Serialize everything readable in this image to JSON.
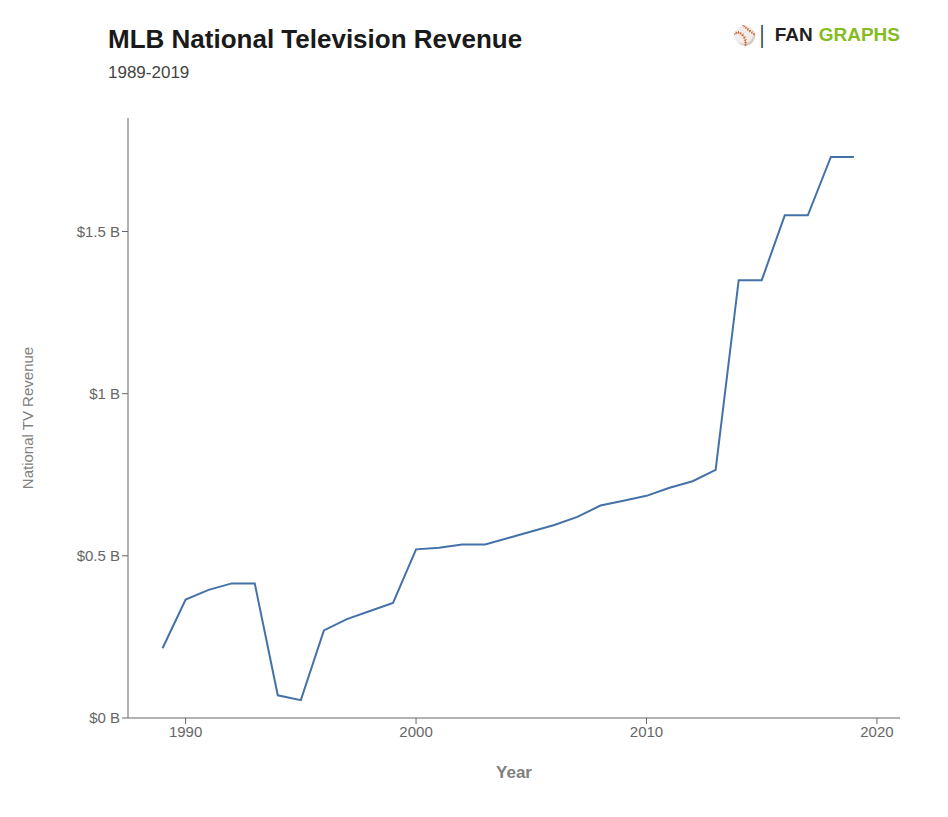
{
  "chart_data": {
    "type": "line",
    "title": "MLB National Television Revenue",
    "subtitle": "1989-2019",
    "xlabel": "Year",
    "ylabel": "National TV Revenue",
    "color": "#4472a8",
    "x": [
      1989,
      1990,
      1991,
      1992,
      1993,
      1994,
      1995,
      1996,
      1997,
      1998,
      1999,
      2000,
      2001,
      2002,
      2003,
      2004,
      2005,
      2006,
      2007,
      2008,
      2009,
      2010,
      2011,
      2012,
      2013,
      2014,
      2015,
      2016,
      2017,
      2018,
      2019
    ],
    "values": [
      0.215,
      0.365,
      0.395,
      0.415,
      0.415,
      0.07,
      0.055,
      0.27,
      0.305,
      0.33,
      0.355,
      0.52,
      0.525,
      0.535,
      0.535,
      0.555,
      0.575,
      0.595,
      0.62,
      0.655,
      0.67,
      0.685,
      0.71,
      0.73,
      0.765,
      1.35,
      1.35,
      1.55,
      1.55,
      1.73,
      1.73
    ],
    "xlim": [
      1987.5,
      2021
    ],
    "xticks": [
      1990,
      2000,
      2010,
      2020
    ],
    "ylim": [
      0,
      1.85
    ],
    "yticks": [
      {
        "value": 0.0,
        "label": "$0 B"
      },
      {
        "value": 0.5,
        "label": "$0.5 B"
      },
      {
        "value": 1.0,
        "label": "$1 B"
      },
      {
        "value": 1.5,
        "label": "$1.5 B"
      }
    ],
    "grid": false,
    "annotations": [
      {
        "text": "⚾│",
        "color": "#231f20"
      },
      {
        "text": "FAN",
        "color": "#231f20"
      },
      {
        "text": "GRAPHS",
        "color": "#84bc22"
      }
    ]
  }
}
